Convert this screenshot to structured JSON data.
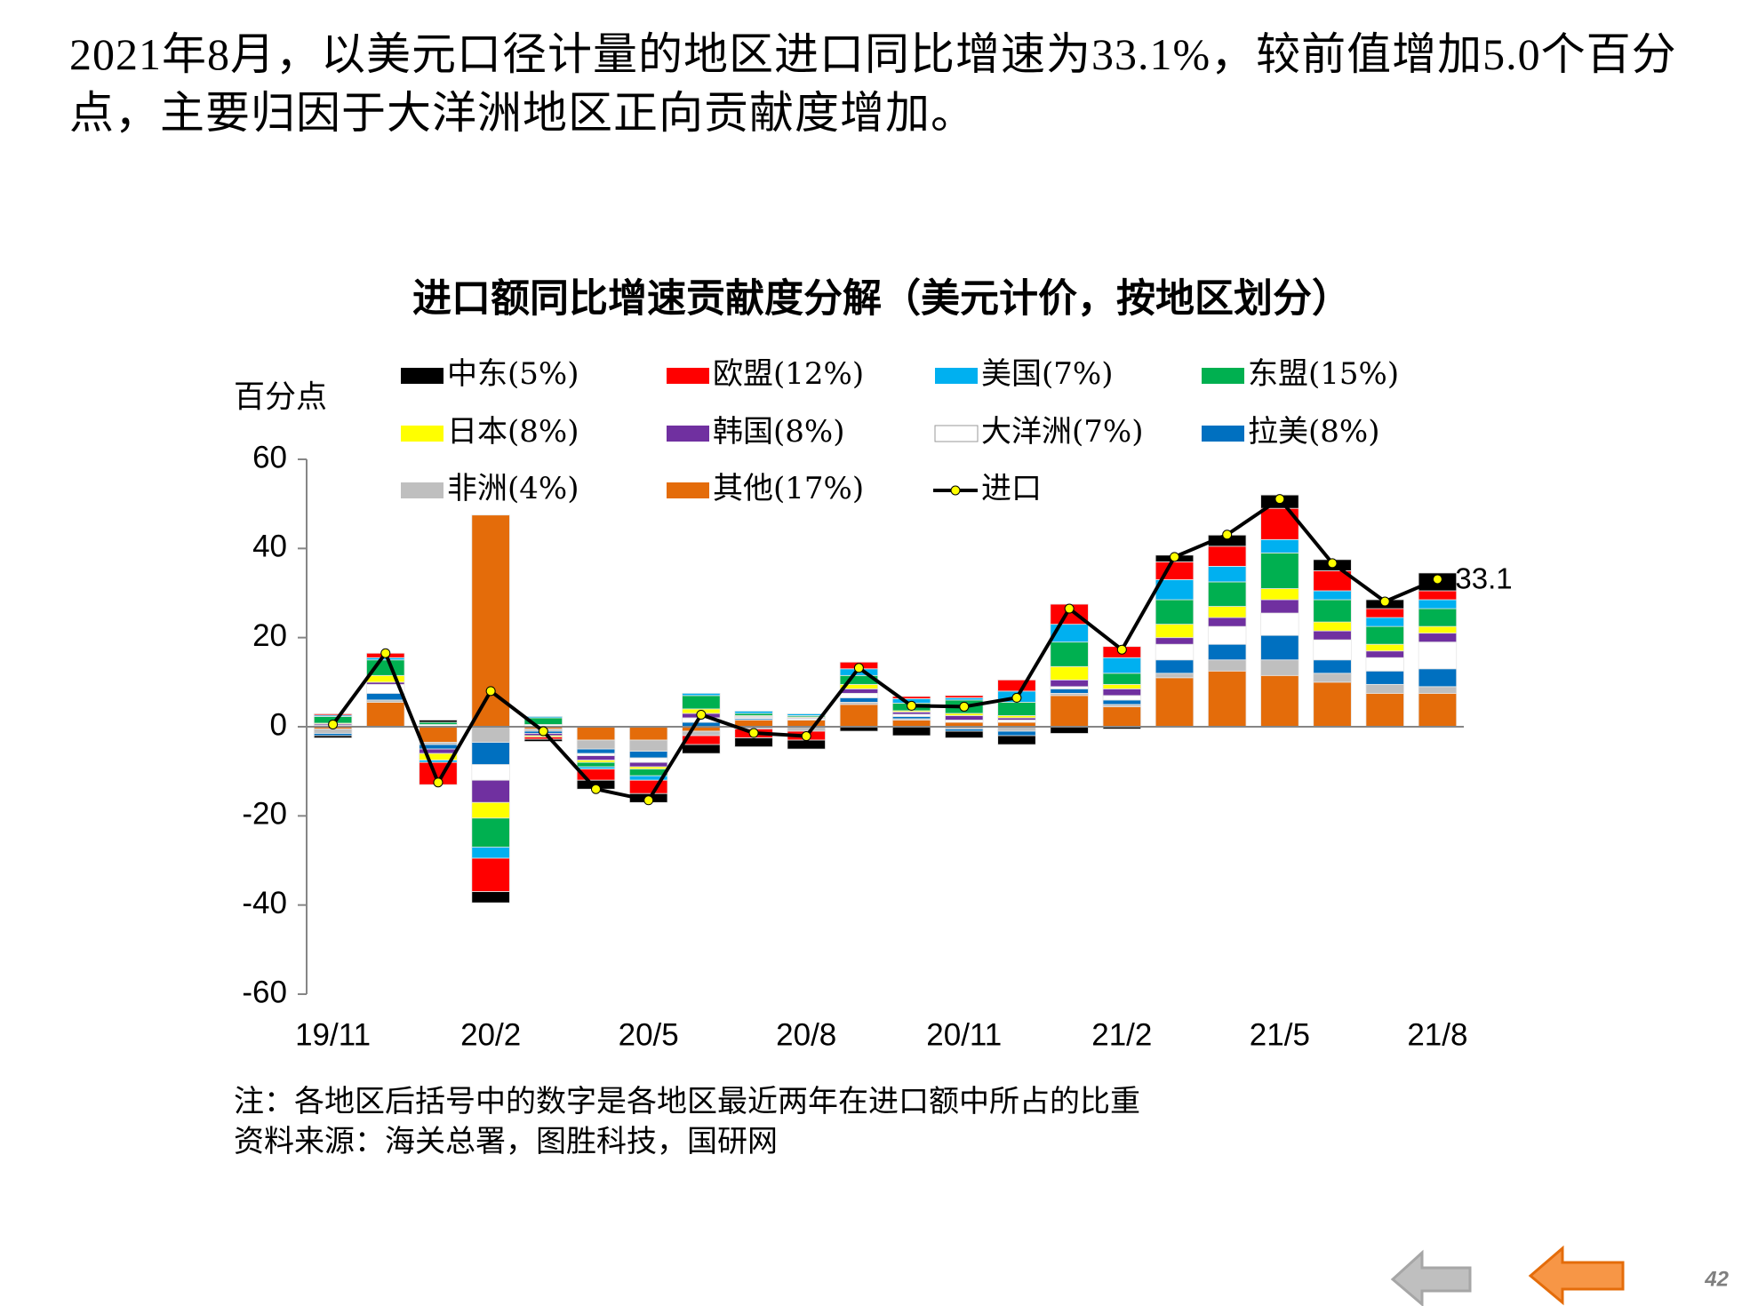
{
  "heading": "2021年8月，以美元口径计量的地区进口同比增速为33.1%，较前值增加5.0个百分点，主要归因于大洋洲地区正向贡献度增加。",
  "chart_data": {
    "type": "bar",
    "stacked": true,
    "title": "进口额同比增速贡献度分解（美元计价，按地区划分）",
    "y_label": "百分点",
    "categories": [
      "19/11",
      null,
      null,
      "20/2",
      null,
      null,
      "20/5",
      null,
      null,
      "20/8",
      null,
      null,
      "20/11",
      null,
      null,
      "21/2",
      null,
      null,
      "21/5",
      null,
      null,
      "21/8"
    ],
    "ylim": [
      -60,
      60
    ],
    "yticks": [
      60,
      40,
      20,
      0,
      -20,
      -40,
      -60
    ],
    "series": [
      {
        "name": "中东(5%)",
        "color": "#000000",
        "values": [
          -0.5,
          0,
          0.5,
          -2.5,
          -0.5,
          -2,
          -2,
          -2,
          -2,
          -2,
          -1,
          -2,
          -1.5,
          -2,
          -1.5,
          -0.5,
          1.5,
          2.5,
          3,
          2.5,
          2,
          4
        ]
      },
      {
        "name": "欧盟(12%)",
        "color": "#ff0000",
        "values": [
          0.3,
          1,
          -5,
          -7.5,
          -0.5,
          -2.5,
          -3,
          -2,
          -2,
          -2,
          1.5,
          0.5,
          0.5,
          2.5,
          4.5,
          2.5,
          4,
          4.5,
          7,
          4.5,
          2,
          2
        ]
      },
      {
        "name": "美国(7%)",
        "color": "#00b0f0",
        "values": [
          0.3,
          0.5,
          -0.5,
          -2.5,
          0.3,
          -0.5,
          -1,
          0.5,
          0.5,
          0.4,
          1.5,
          1,
          0.5,
          2.5,
          4,
          3.5,
          4.5,
          3.5,
          3,
          2,
          2,
          2
        ]
      },
      {
        "name": "东盟(15%)",
        "color": "#00b050",
        "values": [
          1.5,
          3.5,
          0.5,
          -6.5,
          1.5,
          -1,
          -1.5,
          3,
          0.5,
          0.3,
          2,
          1.7,
          3,
          3,
          5.5,
          2.5,
          5.5,
          5.5,
          8,
          5,
          4,
          4
        ]
      },
      {
        "name": "日本(8%)",
        "color": "#ffff00",
        "values": [
          0.2,
          1.5,
          -1.5,
          -3.5,
          -0.3,
          -0.5,
          -0.5,
          1,
          0.2,
          0.2,
          1,
          0.3,
          0.5,
          0.5,
          3,
          1,
          3,
          2.5,
          2.5,
          2,
          1.5,
          1.5
        ]
      },
      {
        "name": "韩国(8%)",
        "color": "#7030a0",
        "values": [
          0.3,
          0.5,
          -1,
          -5,
          -0.5,
          -1,
          -1,
          1,
          0.2,
          0.2,
          1,
          0.5,
          1,
          0.5,
          1.5,
          1.5,
          1.5,
          2,
          3,
          2,
          1.5,
          2
        ]
      },
      {
        "name": "大洋洲(7%)",
        "color": "#ffffff",
        "values": [
          0.3,
          2,
          0.5,
          -3.5,
          0.5,
          -0.5,
          -1,
          1,
          0.3,
          0.3,
          1,
          0.5,
          0.5,
          0.5,
          0.5,
          1,
          3.5,
          4,
          5,
          4.5,
          3,
          6
        ]
      },
      {
        "name": "拉美(8%)",
        "color": "#0070c0",
        "values": [
          -0.5,
          1.5,
          -1,
          -5,
          -0.5,
          -1,
          -1.5,
          1,
          0.3,
          0,
          1,
          0.5,
          -0.5,
          -1,
          1,
          1,
          3,
          3.5,
          5.5,
          3,
          3,
          4
        ]
      },
      {
        "name": "非洲(4%)",
        "color": "#bfbfbf",
        "values": [
          -1,
          0.5,
          -0.5,
          -3.5,
          -0.5,
          -2,
          -2.5,
          -1,
          -0.5,
          -1,
          0.5,
          0.3,
          -0.5,
          -1,
          0.5,
          0.5,
          1,
          2.5,
          3.5,
          2,
          2,
          1.5
        ]
      },
      {
        "name": "其他(17%)",
        "color": "#e46c0a",
        "values": [
          -0.5,
          5.5,
          -3.5,
          47.5,
          -0.5,
          -3,
          -3,
          -1,
          1.5,
          1.5,
          5,
          1.5,
          1,
          1,
          7,
          4.5,
          11,
          12.5,
          11.5,
          10,
          7.5,
          7.5
        ]
      },
      {
        "name": "进口",
        "type": "line",
        "color": "#000000",
        "marker_color": "#ffff00",
        "values": [
          0.5,
          16.5,
          -12.5,
          8,
          -1,
          -14,
          -16.5,
          2.7,
          -1.4,
          -2.1,
          13.2,
          4.7,
          4.5,
          6.5,
          26.5,
          17.3,
          38.1,
          43.1,
          51.1,
          36.7,
          28.1,
          33.1
        ]
      }
    ],
    "notes": [
      "注：各地区后括号中的数字是各地区最近两年在进口额中所占的比重",
      "资料来源：海关总署，图胜科技，国研网"
    ]
  },
  "page_number": "42"
}
